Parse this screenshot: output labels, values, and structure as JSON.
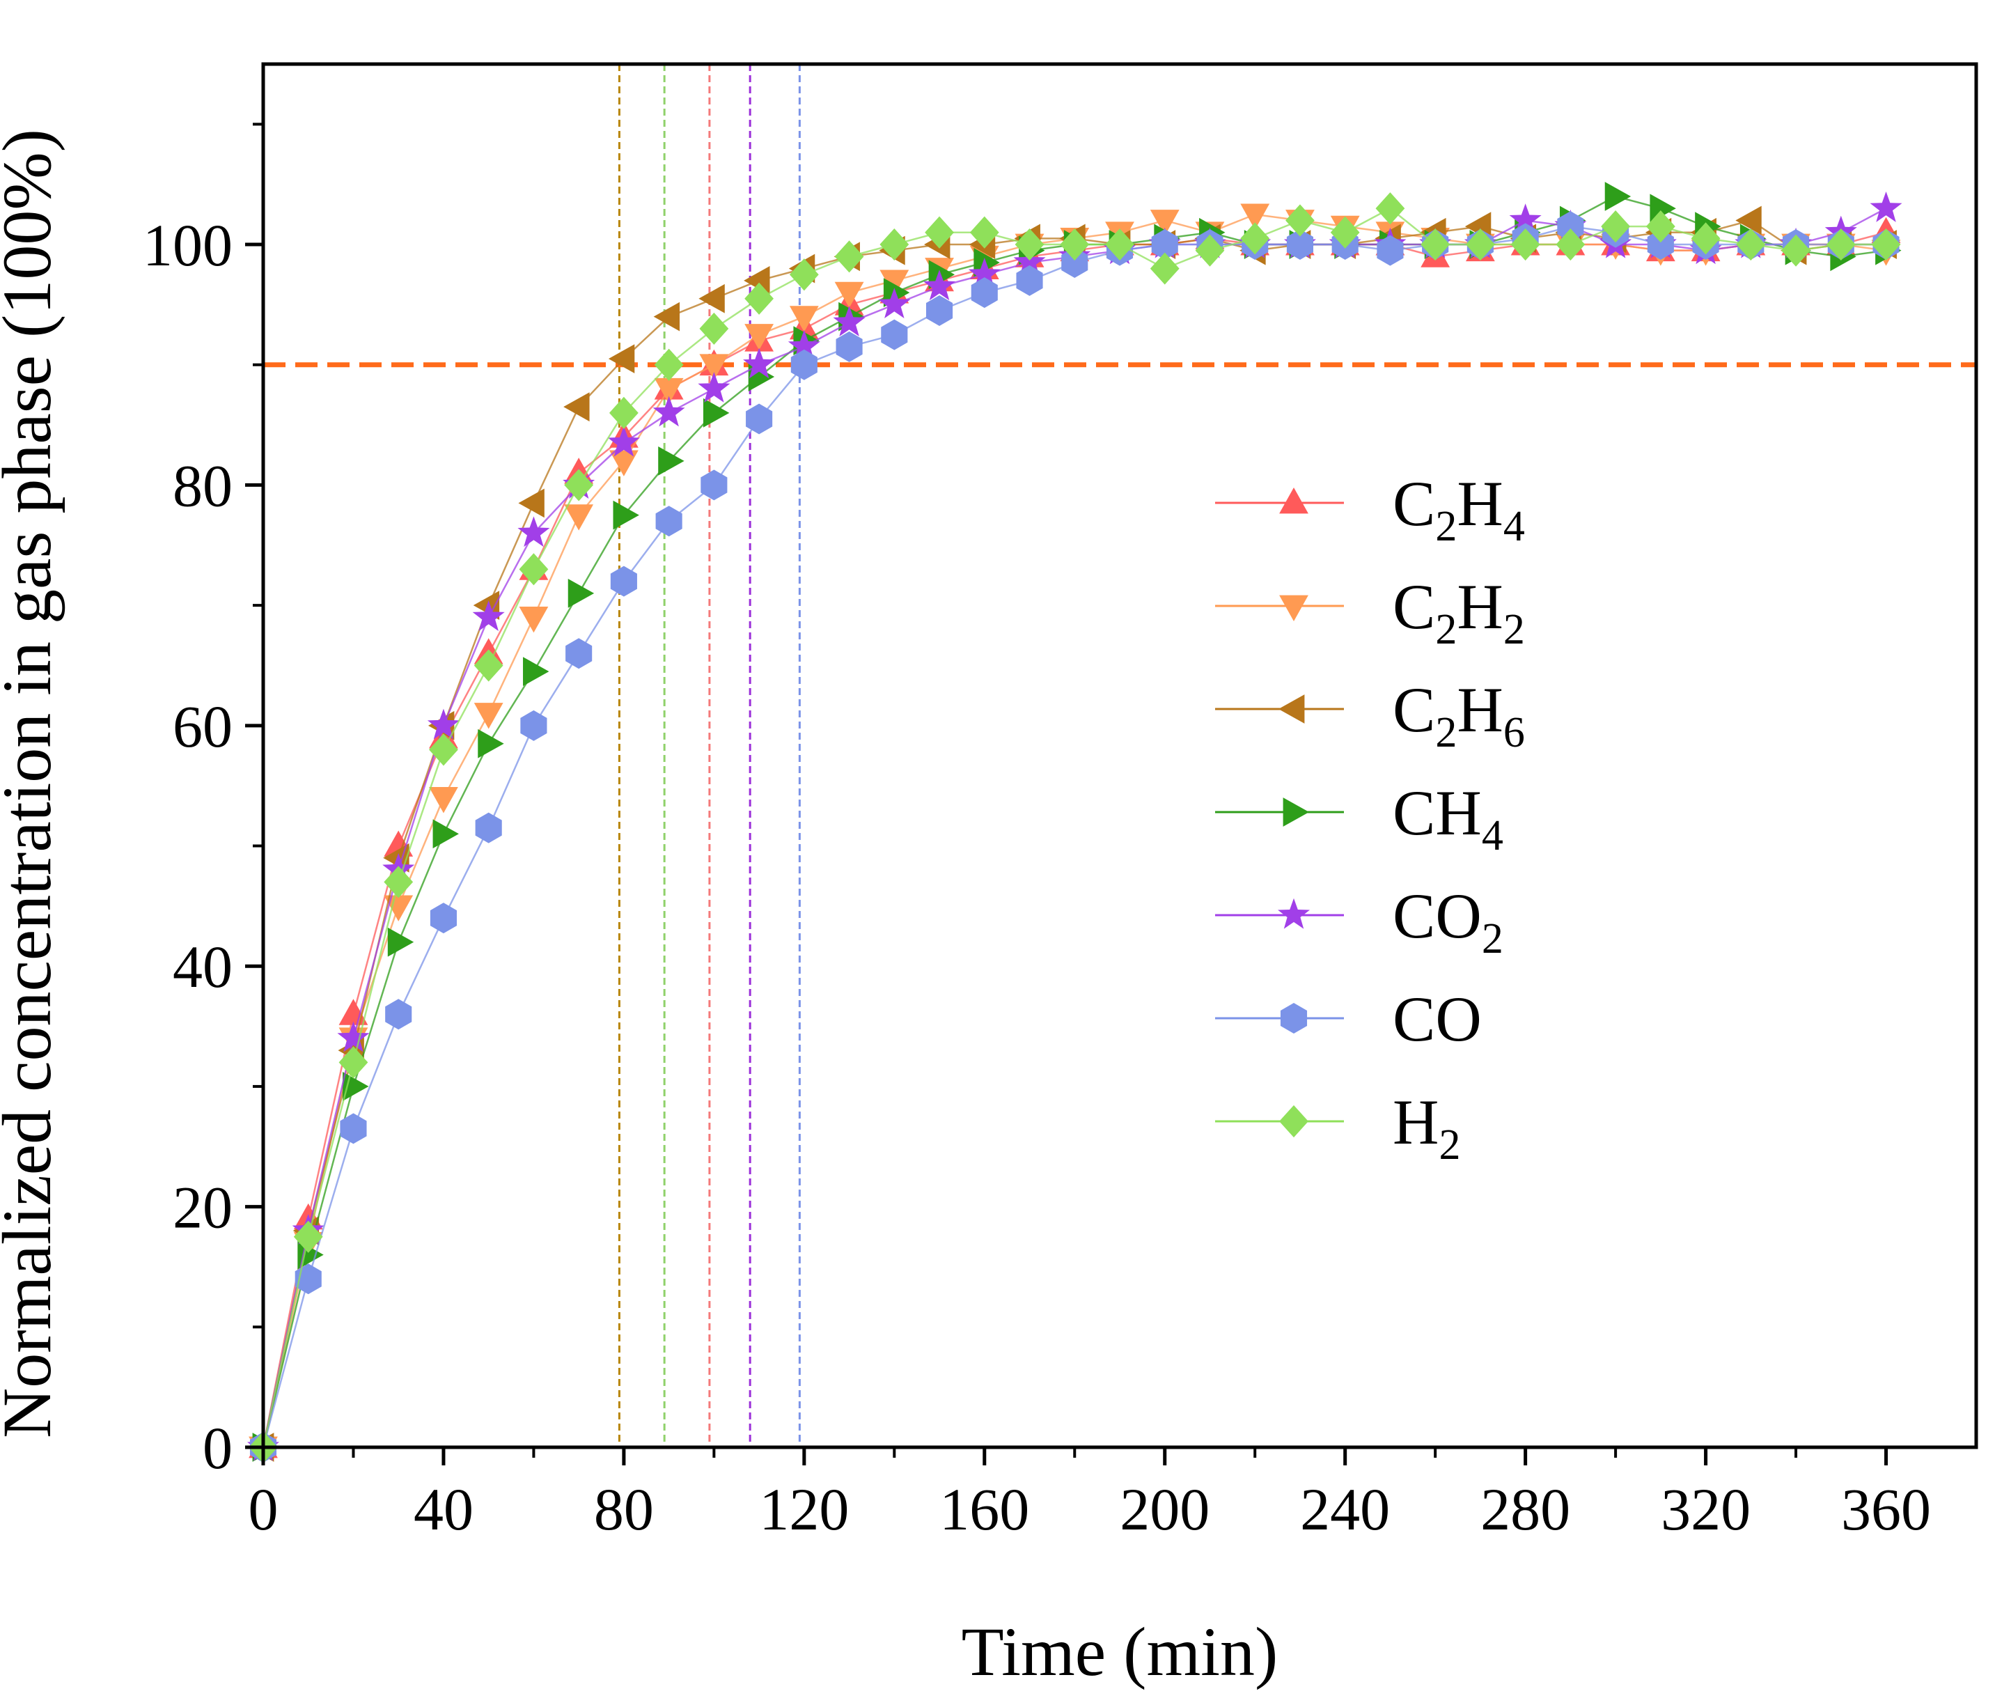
{
  "chart_data": {
    "type": "line",
    "xlabel": "Time (min)",
    "ylabel": "Normalized concentration in gas phase (100%)",
    "xlim": [
      0,
      380
    ],
    "ylim": [
      0,
      115
    ],
    "xticks": [
      0,
      40,
      80,
      120,
      160,
      200,
      240,
      280,
      320,
      360
    ],
    "yticks": [
      0,
      20,
      40,
      60,
      80,
      100
    ],
    "xtick_labels": [
      "0",
      "40",
      "80",
      "120",
      "160",
      "200",
      "240",
      "280",
      "320",
      "360"
    ],
    "ytick_labels": [
      "0",
      "20",
      "40",
      "60",
      "80",
      "100"
    ],
    "legend_position": "center-right",
    "reference_line": {
      "y": 90,
      "color": "#FF6A1A",
      "style": "dashed"
    },
    "vertical_lines": [
      {
        "x": 79,
        "color": "#B8860B"
      },
      {
        "x": 89,
        "color": "#8FD16A"
      },
      {
        "x": 99,
        "color": "#F47A7A"
      },
      {
        "x": 108,
        "color": "#9B30D9"
      },
      {
        "x": 119,
        "color": "#7B93E8"
      }
    ],
    "x": [
      0,
      10,
      20,
      30,
      40,
      50,
      60,
      70,
      80,
      90,
      100,
      110,
      120,
      130,
      140,
      150,
      160,
      170,
      180,
      190,
      200,
      210,
      220,
      230,
      240,
      250,
      260,
      270,
      280,
      290,
      300,
      310,
      320,
      330,
      340,
      350,
      360
    ],
    "series": [
      {
        "name": "C2H4",
        "base": "C",
        "sub1": "2",
        "mid": "H",
        "sub2": "4",
        "color": "#FF5A5A",
        "marker": "triangle-up",
        "values": [
          0,
          19,
          36,
          50,
          59,
          66,
          73,
          81,
          84,
          88,
          90,
          92,
          93,
          95,
          96,
          97,
          98,
          99,
          99.5,
          100,
          100,
          100.5,
          100,
          100,
          100,
          100,
          99,
          99.5,
          100,
          100,
          100,
          99.5,
          99.5,
          100,
          100,
          100,
          101
        ]
      },
      {
        "name": "C2H2",
        "base": "C",
        "sub1": "2",
        "mid": "H",
        "sub2": "2",
        "color": "#FF9A52",
        "marker": "triangle-down",
        "values": [
          0,
          17,
          34,
          45,
          54,
          61,
          69,
          77.5,
          82,
          88,
          90,
          92.5,
          94,
          96,
          97,
          98,
          99,
          100,
          100.5,
          101,
          102,
          101,
          102.5,
          102,
          101.5,
          101,
          100.5,
          100,
          100,
          100,
          100,
          99.5,
          99.5,
          100,
          100,
          100,
          99.5
        ]
      },
      {
        "name": "C2H6",
        "base": "C",
        "sub1": "2",
        "mid": "H",
        "sub2": "6",
        "color": "#B8761A",
        "marker": "triangle-left",
        "values": [
          0,
          18,
          33,
          49,
          60,
          70,
          78.5,
          86.5,
          90.5,
          94,
          95.5,
          97,
          98,
          99,
          99.5,
          100,
          100,
          100.5,
          100.5,
          100,
          100,
          100.5,
          99.5,
          100,
          100,
          100.5,
          101,
          101.5,
          100.5,
          101,
          100.5,
          101,
          101,
          102,
          99.5,
          100,
          100
        ]
      },
      {
        "name": "CH4",
        "base": "CH",
        "sub1": "4",
        "mid": "",
        "sub2": "",
        "color": "#2E9E1A",
        "marker": "triangle-right",
        "values": [
          0,
          16,
          30,
          42,
          51,
          58.5,
          64.5,
          71,
          77.5,
          82,
          86,
          89,
          92,
          94,
          96,
          97.5,
          98.5,
          99.5,
          100,
          100,
          100.5,
          101,
          100,
          100,
          100,
          100,
          100,
          100,
          101,
          102,
          104,
          103,
          101.5,
          100.5,
          99.5,
          99,
          99.5
        ]
      },
      {
        "name": "CO2",
        "base": "CO",
        "sub1": "2",
        "mid": "",
        "sub2": "",
        "color": "#A13FE8",
        "marker": "star",
        "values": [
          0,
          18,
          34,
          48,
          60,
          69,
          76,
          80,
          83.5,
          86,
          88,
          90,
          91.5,
          93.5,
          95,
          96.5,
          97.5,
          98.5,
          99,
          99.5,
          100,
          100,
          100,
          100,
          100,
          100,
          100,
          100,
          102,
          101.5,
          100,
          100,
          99.5,
          100,
          100,
          101,
          103
        ]
      },
      {
        "name": "CO",
        "base": "CO",
        "sub1": "",
        "mid": "",
        "sub2": "",
        "color": "#7B93E8",
        "marker": "hexagon",
        "values": [
          0,
          14,
          26.5,
          36,
          44,
          51.5,
          60,
          66,
          72,
          77,
          80,
          85.5,
          90,
          91.5,
          92.5,
          94.5,
          96,
          97,
          98.5,
          99.5,
          100,
          100,
          100,
          100,
          100,
          99.5,
          100,
          100,
          100.5,
          101.5,
          101,
          100,
          100,
          100,
          100,
          100,
          100
        ]
      },
      {
        "name": "H2",
        "base": "H",
        "sub1": "2",
        "mid": "",
        "sub2": "",
        "color": "#8FE05A",
        "marker": "diamond",
        "values": [
          0,
          17.5,
          32,
          47,
          58,
          65,
          73,
          80,
          86,
          90,
          93,
          95.5,
          97.5,
          99,
          100,
          101,
          101,
          100,
          100,
          100,
          98,
          99.5,
          100.5,
          102,
          101,
          103,
          100,
          100,
          100,
          100,
          101.5,
          101.5,
          100.5,
          100,
          99.5,
          100,
          100
        ]
      }
    ]
  }
}
